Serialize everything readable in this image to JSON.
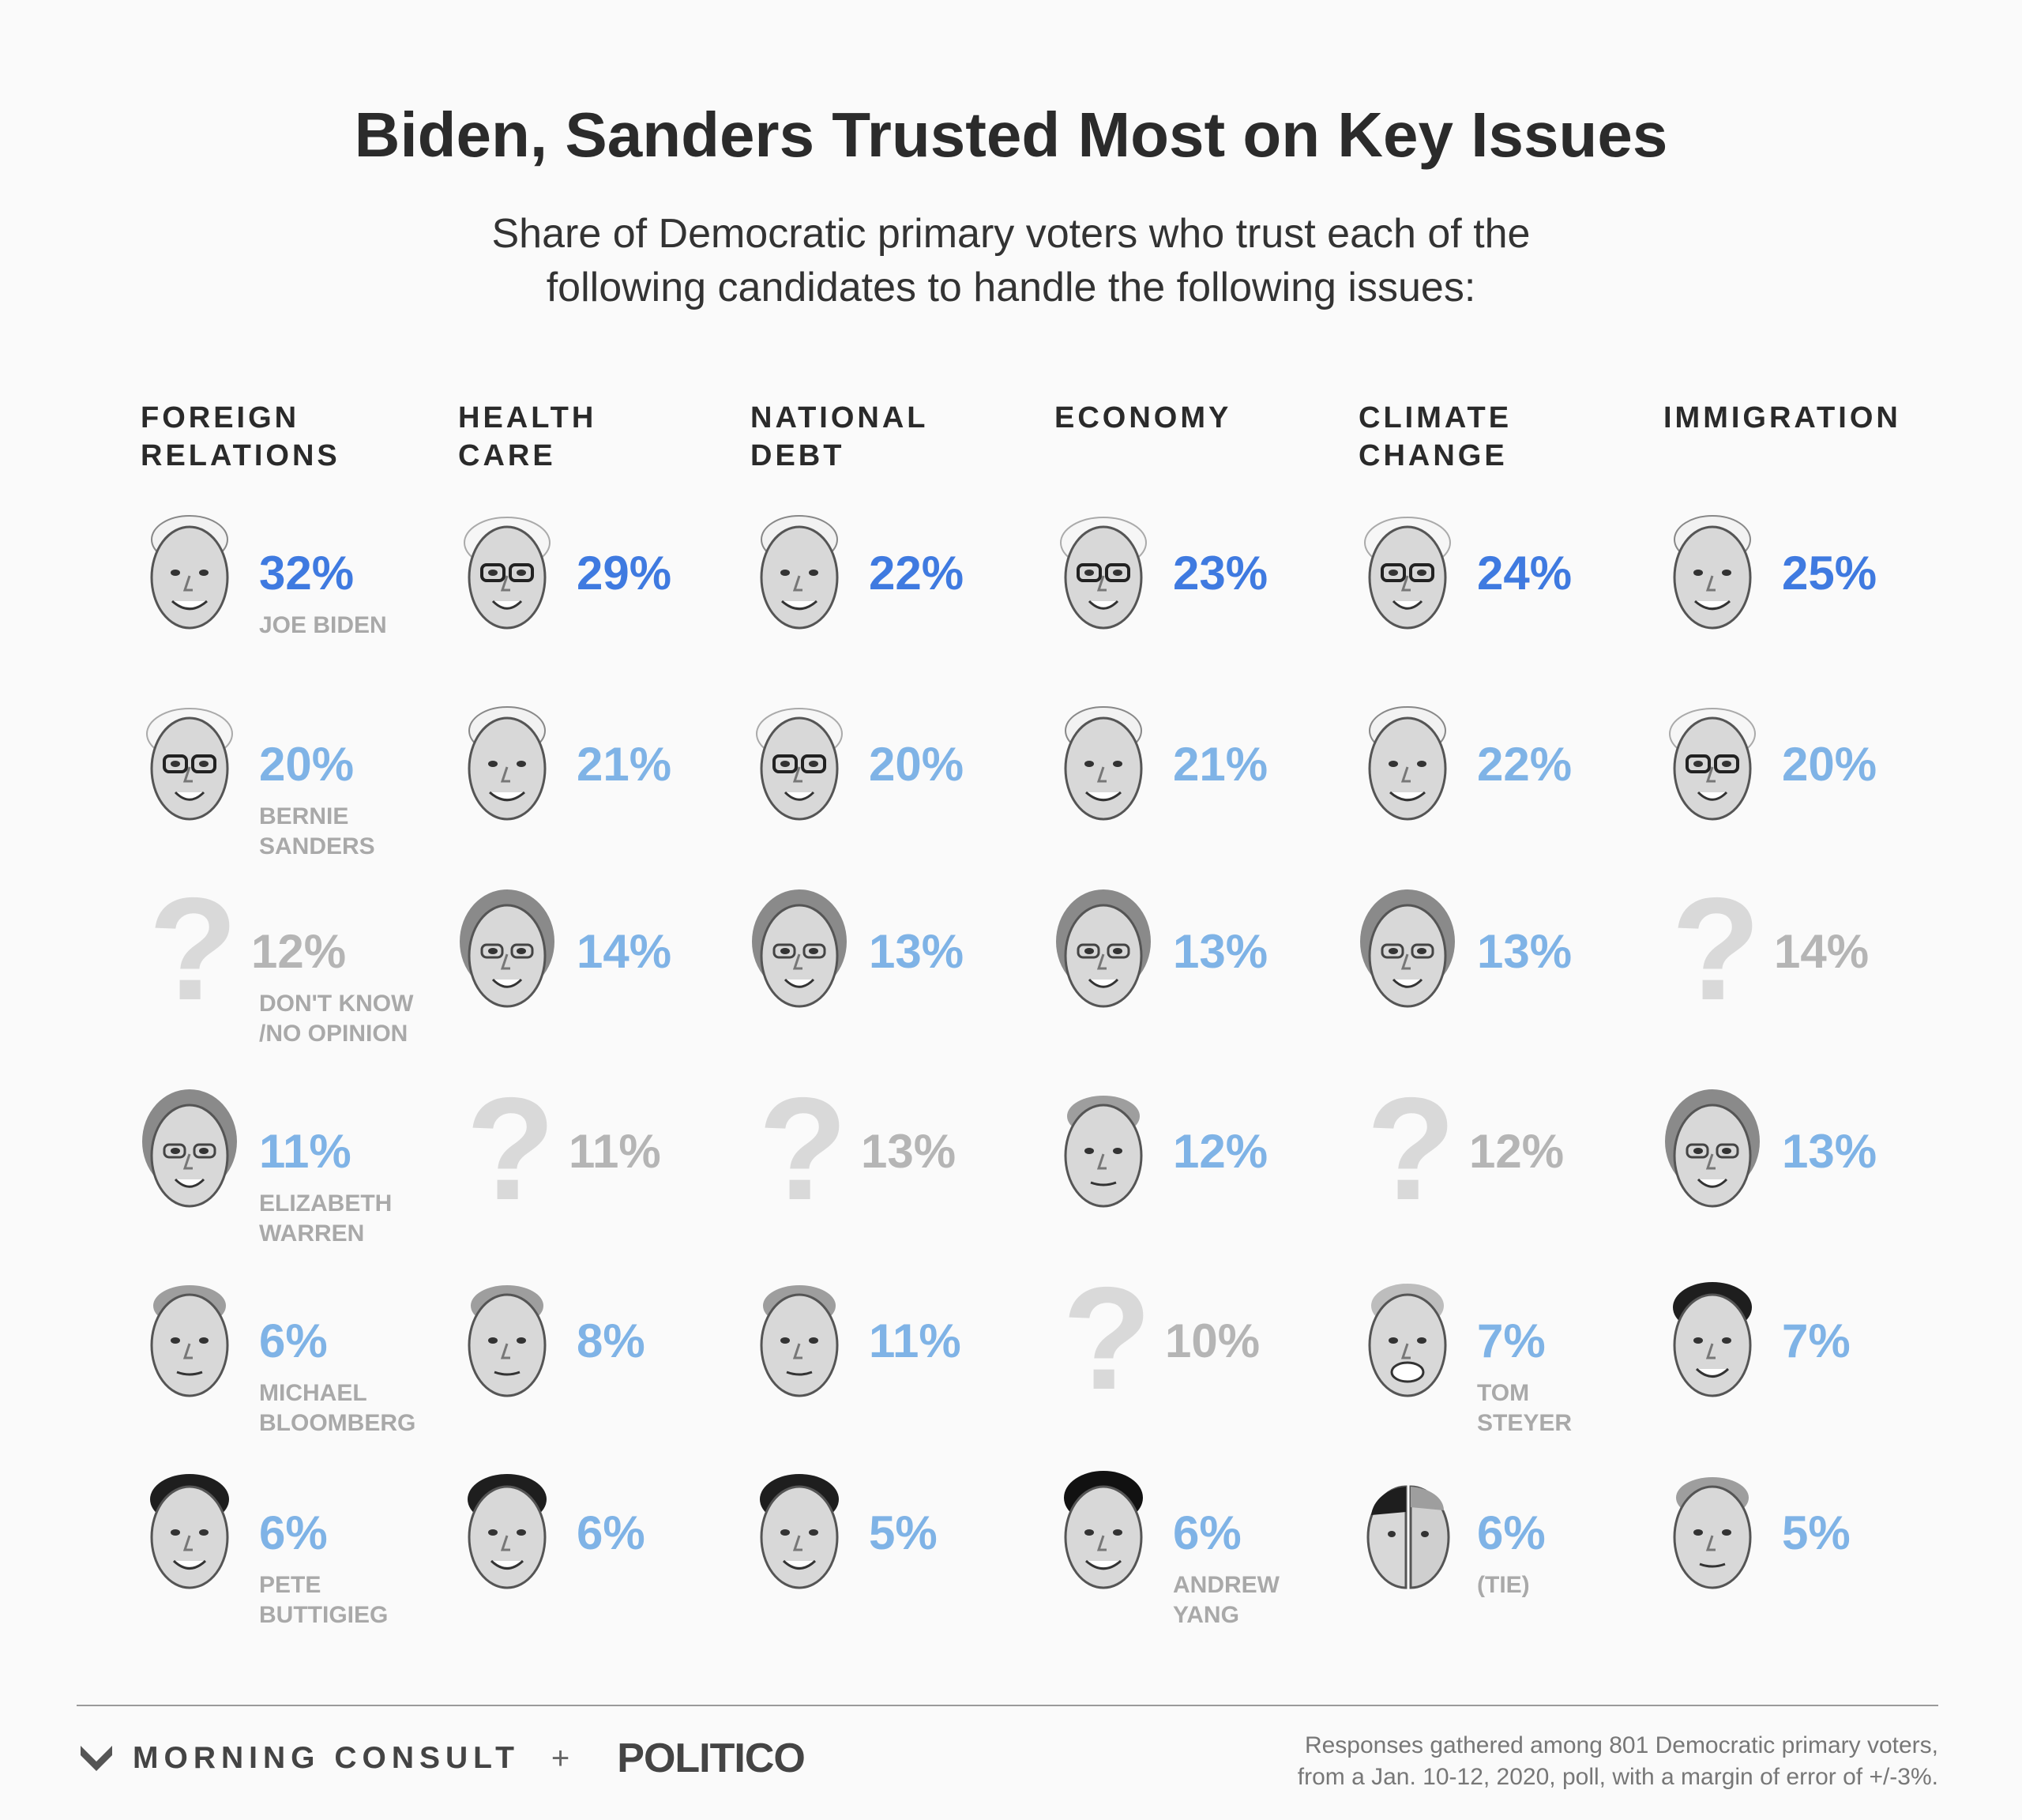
{
  "title": "Biden, Sanders Trusted Most on Key Issues",
  "subtitle": "Share of Democratic primary voters who trust each of the\nfollowing candidates to handle the following issues:",
  "chart_data": {
    "type": "table",
    "columns": [
      {
        "issue": "FOREIGN\nRELATIONS",
        "entries": [
          {
            "candidate": "biden",
            "value": 32,
            "label": "32%",
            "name": "JOE BIDEN"
          },
          {
            "candidate": "sanders",
            "value": 20,
            "label": "20%",
            "name": "BERNIE\nSANDERS"
          },
          {
            "candidate": "unknown",
            "value": 12,
            "label": "12%",
            "name": "DON'T KNOW\n/NO OPINION"
          },
          {
            "candidate": "warren",
            "value": 11,
            "label": "11%",
            "name": "ELIZABETH\nWARREN"
          },
          {
            "candidate": "bloomberg",
            "value": 6,
            "label": "6%",
            "name": "MICHAEL\nBLOOMBERG"
          },
          {
            "candidate": "buttigieg",
            "value": 6,
            "label": "6%",
            "name": "PETE\nBUTTIGIEG"
          }
        ]
      },
      {
        "issue": "HEALTH\nCARE",
        "entries": [
          {
            "candidate": "sanders",
            "value": 29,
            "label": "29%",
            "name": ""
          },
          {
            "candidate": "biden",
            "value": 21,
            "label": "21%",
            "name": ""
          },
          {
            "candidate": "warren",
            "value": 14,
            "label": "14%",
            "name": ""
          },
          {
            "candidate": "unknown",
            "value": 11,
            "label": "11%",
            "name": ""
          },
          {
            "candidate": "bloomberg",
            "value": 8,
            "label": "8%",
            "name": ""
          },
          {
            "candidate": "buttigieg",
            "value": 6,
            "label": "6%",
            "name": ""
          }
        ]
      },
      {
        "issue": "NATIONAL\nDEBT",
        "entries": [
          {
            "candidate": "biden",
            "value": 22,
            "label": "22%",
            "name": ""
          },
          {
            "candidate": "sanders",
            "value": 20,
            "label": "20%",
            "name": ""
          },
          {
            "candidate": "warren",
            "value": 13,
            "label": "13%",
            "name": ""
          },
          {
            "candidate": "unknown",
            "value": 13,
            "label": "13%",
            "name": ""
          },
          {
            "candidate": "bloomberg",
            "value": 11,
            "label": "11%",
            "name": ""
          },
          {
            "candidate": "buttigieg",
            "value": 5,
            "label": "5%",
            "name": ""
          }
        ]
      },
      {
        "issue": "ECONOMY",
        "entries": [
          {
            "candidate": "sanders",
            "value": 23,
            "label": "23%",
            "name": ""
          },
          {
            "candidate": "biden",
            "value": 21,
            "label": "21%",
            "name": ""
          },
          {
            "candidate": "warren",
            "value": 13,
            "label": "13%",
            "name": ""
          },
          {
            "candidate": "bloomberg",
            "value": 12,
            "label": "12%",
            "name": ""
          },
          {
            "candidate": "unknown",
            "value": 10,
            "label": "10%",
            "name": ""
          },
          {
            "candidate": "yang",
            "value": 6,
            "label": "6%",
            "name": "ANDREW\nYANG"
          }
        ]
      },
      {
        "issue": "CLIMATE\nCHANGE",
        "entries": [
          {
            "candidate": "sanders",
            "value": 24,
            "label": "24%",
            "name": ""
          },
          {
            "candidate": "biden",
            "value": 22,
            "label": "22%",
            "name": ""
          },
          {
            "candidate": "warren",
            "value": 13,
            "label": "13%",
            "name": ""
          },
          {
            "candidate": "unknown",
            "value": 12,
            "label": "12%",
            "name": ""
          },
          {
            "candidate": "steyer",
            "value": 7,
            "label": "7%",
            "name": "TOM\nSTEYER"
          },
          {
            "candidate": "tie",
            "value": 6,
            "label": "6%",
            "name": "(TIE)"
          }
        ]
      },
      {
        "issue": "IMMIGRATION",
        "entries": [
          {
            "candidate": "biden",
            "value": 25,
            "label": "25%",
            "name": ""
          },
          {
            "candidate": "sanders",
            "value": 20,
            "label": "20%",
            "name": ""
          },
          {
            "candidate": "unknown",
            "value": 14,
            "label": "14%",
            "name": ""
          },
          {
            "candidate": "warren",
            "value": 13,
            "label": "13%",
            "name": ""
          },
          {
            "candidate": "buttigieg",
            "value": 7,
            "label": "7%",
            "name": ""
          },
          {
            "candidate": "bloomberg",
            "value": 5,
            "label": "5%",
            "name": ""
          }
        ]
      }
    ]
  },
  "colors": {
    "leader": "#3f7ae0",
    "others": "#7fb3e6",
    "unknown": "#b5b5b5"
  },
  "question_glyph": "?",
  "footer": {
    "brand_1": "MORNING CONSULT",
    "plus": "+",
    "brand_2": "POLITICO",
    "note": "Responses gathered among 801 Democratic primary voters,\nfrom a Jan. 10-12, 2020, poll, with a margin of error of +/-3%."
  }
}
